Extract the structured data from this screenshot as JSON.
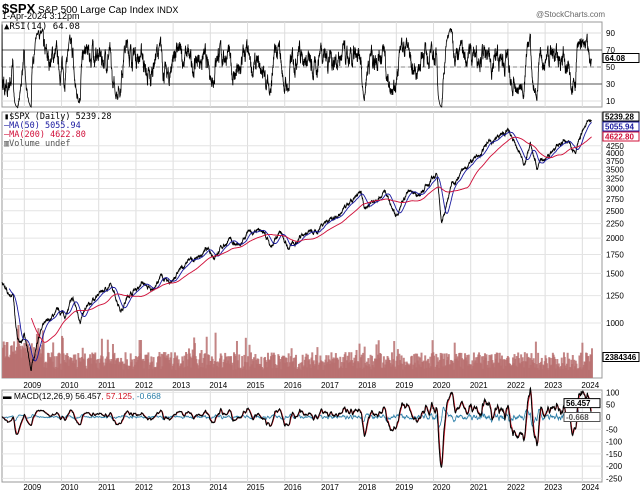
{
  "header": {
    "symbol": "$SPX",
    "name": "S&P 500 Large Cap Index",
    "exchange": "INDX",
    "datetime": "1-Apr-2024 3:12pm",
    "watermark": "@StockCharts.com"
  },
  "colors": {
    "price": "#000000",
    "ma50": "#1a1aa0",
    "ma200": "#d0103a",
    "volume": "#b87070",
    "macd": "#000000",
    "signal": "#d01020",
    "histogram": "#2a7ea8"
  },
  "chart_data": [
    {
      "type": "line",
      "panel": "rsi",
      "legend": "RSI(14) 64.08",
      "last_value": "64.08",
      "ylim": [
        0,
        100
      ],
      "yticks": [
        "90",
        "70",
        "50",
        "30",
        "10"
      ],
      "reference_lines": [
        70,
        50,
        30
      ]
    },
    {
      "type": "line",
      "panel": "price",
      "yscale": "log",
      "legend": {
        "price": "$SPX (Daily) 5239.28",
        "ma50": "MA(50) 5055.94",
        "ma200": "MA(200) 4622.80",
        "volume": "Volume undef"
      },
      "last_values": {
        "price": "5239.28",
        "ma50": "5055.94",
        "ma200": "4622.80",
        "volume": "2384346"
      },
      "yticks": [
        "4250",
        "4000",
        "3750",
        "3500",
        "3250",
        "3000",
        "2750",
        "2500",
        "2250",
        "2000",
        "1750",
        "1500",
        "1250",
        "1000"
      ],
      "xticks": [
        "2009",
        "2010",
        "2011",
        "2012",
        "2013",
        "2014",
        "2015",
        "2016",
        "2017",
        "2018",
        "2019",
        "2020",
        "2021",
        "2022",
        "2023",
        "2024"
      ],
      "points": [
        [
          2008.4,
          1400
        ],
        [
          2008.55,
          1260
        ],
        [
          2008.7,
          1250
        ],
        [
          2008.8,
          900
        ],
        [
          2008.9,
          850
        ],
        [
          2009.0,
          900
        ],
        [
          2009.18,
          680
        ],
        [
          2009.4,
          920
        ],
        [
          2009.6,
          1000
        ],
        [
          2009.9,
          1110
        ],
        [
          2010.1,
          1070
        ],
        [
          2010.3,
          1210
        ],
        [
          2010.5,
          1030
        ],
        [
          2010.7,
          1140
        ],
        [
          2011.0,
          1270
        ],
        [
          2011.3,
          1360
        ],
        [
          2011.6,
          1120
        ],
        [
          2011.8,
          1250
        ],
        [
          2012.2,
          1400
        ],
        [
          2012.4,
          1290
        ],
        [
          2012.7,
          1460
        ],
        [
          2012.9,
          1380
        ],
        [
          2013.4,
          1650
        ],
        [
          2013.6,
          1690
        ],
        [
          2013.9,
          1810
        ],
        [
          2014.1,
          1740
        ],
        [
          2014.5,
          1970
        ],
        [
          2014.8,
          1860
        ],
        [
          2015.0,
          2060
        ],
        [
          2015.4,
          2120
        ],
        [
          2015.65,
          1870
        ],
        [
          2015.9,
          2090
        ],
        [
          2016.1,
          1830
        ],
        [
          2016.5,
          2100
        ],
        [
          2016.85,
          2080
        ],
        [
          2017.0,
          2270
        ],
        [
          2017.5,
          2440
        ],
        [
          2018.05,
          2870
        ],
        [
          2018.15,
          2580
        ],
        [
          2018.7,
          2930
        ],
        [
          2018.98,
          2350
        ],
        [
          2019.3,
          2950
        ],
        [
          2019.6,
          2850
        ],
        [
          2020.1,
          3380
        ],
        [
          2020.22,
          2240
        ],
        [
          2020.5,
          3150
        ],
        [
          2020.9,
          3600
        ],
        [
          2021.0,
          3750
        ],
        [
          2021.5,
          4350
        ],
        [
          2022.0,
          4790
        ],
        [
          2022.45,
          3670
        ],
        [
          2022.6,
          4300
        ],
        [
          2022.78,
          3580
        ],
        [
          2023.0,
          3850
        ],
        [
          2023.5,
          4450
        ],
        [
          2023.82,
          4120
        ],
        [
          2024.0,
          4770
        ],
        [
          2024.25,
          5239.28
        ]
      ]
    },
    {
      "type": "line",
      "panel": "macd",
      "legend": {
        "macd": "MACD(12,26,9) 56.457",
        "signal": "57.125",
        "histogram": "-0.668"
      },
      "last_values": {
        "macd": "56.457",
        "histogram": "-0.668"
      },
      "ylim": [
        -260,
        110
      ],
      "yticks": [
        "100",
        "50",
        "0",
        "-50",
        "-100",
        "-150",
        "-200",
        "-250"
      ]
    }
  ]
}
